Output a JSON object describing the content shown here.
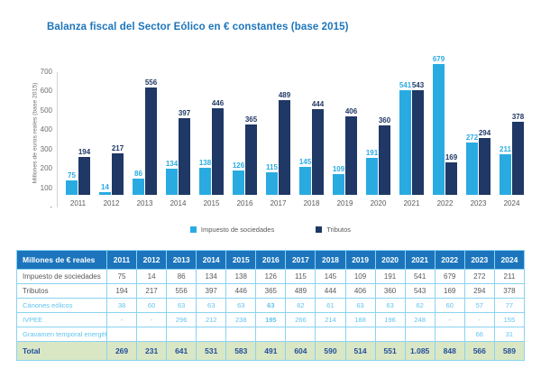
{
  "title": "Balanza fiscal del Sector Eólico en € constantes (base 2015)",
  "colors": {
    "accent_blue": "#1C75BC",
    "series_light_blue": "#29ABE2",
    "series_navy": "#1F3865",
    "table_border": "#8AD3F2",
    "sub_row_text": "#5FC4EE",
    "total_row_bg": "#D9E7C5",
    "total_row_text": "#234E9D",
    "axis_text": "#6D6E71",
    "body_text": "#58595B"
  },
  "chart_data": {
    "type": "bar",
    "title": "Balanza fiscal del Sector Eólico en € constantes (base 2015)",
    "xlabel": "",
    "ylabel": "Millones de euros reales (base 2015)",
    "ylim": [
      0,
      700
    ],
    "y_ticks": [
      {
        "value": 700,
        "label": "700"
      },
      {
        "value": 600,
        "label": "600"
      },
      {
        "value": 500,
        "label": "500"
      },
      {
        "value": 400,
        "label": "400"
      },
      {
        "value": 300,
        "label": "300"
      },
      {
        "value": 200,
        "label": "200"
      },
      {
        "value": 100,
        "label": "100"
      },
      {
        "value": 0,
        "label": "-"
      }
    ],
    "grid": false,
    "legend_position": "bottom",
    "categories": [
      "2011",
      "2012",
      "2013",
      "2014",
      "2015",
      "2016",
      "2017",
      "2018",
      "2019",
      "2020",
      "2021",
      "2022",
      "2023",
      "2024"
    ],
    "series": [
      {
        "name": "Impuesto de sociedades",
        "color": "#29ABE2",
        "values": [
          75,
          14,
          86,
          134,
          138,
          126,
          115,
          145,
          109,
          191,
          541,
          679,
          272,
          211
        ]
      },
      {
        "name": "Tributos",
        "color": "#1F3865",
        "values": [
          194,
          217,
          556,
          397,
          446,
          365,
          489,
          444,
          406,
          360,
          543,
          169,
          294,
          378
        ]
      }
    ]
  },
  "table": {
    "header": [
      "Millones de € reales",
      "2011",
      "2012",
      "2013",
      "2014",
      "2015",
      "2016",
      "2017",
      "2018",
      "2019",
      "2020",
      "2021",
      "2022",
      "2023",
      "2024"
    ],
    "rows": [
      {
        "label": "Impuesto de sociedades",
        "type": "main",
        "values": [
          "75",
          "14",
          "86",
          "134",
          "138",
          "126",
          "115",
          "145",
          "109",
          "191",
          "541",
          "679",
          "272",
          "211"
        ]
      },
      {
        "label": "Tributos",
        "type": "main",
        "values": [
          "194",
          "217",
          "556",
          "397",
          "446",
          "365",
          "489",
          "444",
          "406",
          "360",
          "543",
          "169",
          "294",
          "378"
        ]
      },
      {
        "label": "Cánones eólicos",
        "type": "sub",
        "bold_index": 5,
        "values": [
          "38",
          "60",
          "63",
          "63",
          "63",
          "63",
          "62",
          "61",
          "63",
          "63",
          "62",
          "60",
          "57",
          "77"
        ]
      },
      {
        "label": "IVPEE",
        "type": "sub",
        "bold_index": 5,
        "values": [
          "-",
          "-",
          "296",
          "212",
          "238",
          "195",
          "266",
          "214",
          "188",
          "196",
          "248",
          "-",
          "-",
          "155"
        ]
      },
      {
        "label": "Gravamen temporal energético",
        "type": "sub",
        "values": [
          "",
          "",
          "",
          "",
          "",
          "",
          "",
          "",
          "",
          "",
          "",
          "",
          "66",
          "31"
        ]
      },
      {
        "label": "Total",
        "type": "total",
        "values": [
          "269",
          "231",
          "641",
          "531",
          "583",
          "491",
          "604",
          "590",
          "514",
          "551",
          "1.085",
          "848",
          "566",
          "589"
        ]
      }
    ]
  }
}
